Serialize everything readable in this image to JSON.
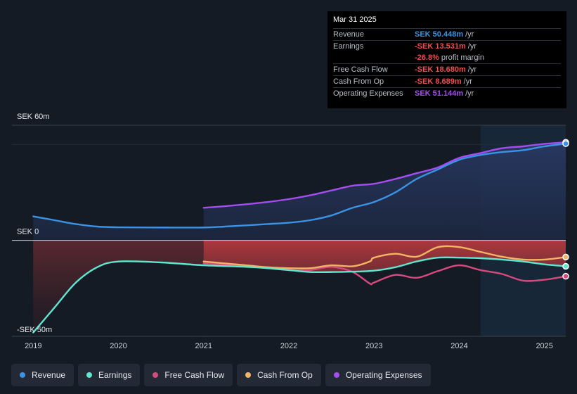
{
  "tooltip": {
    "date": "Mar 31 2025",
    "rows": [
      {
        "label": "Revenue",
        "value": "SEK 50.448m",
        "unit": "/yr"
      },
      {
        "label": "Earnings",
        "value": "-SEK 13.531m",
        "unit": "/yr"
      },
      {
        "label": "",
        "value": "-26.8%",
        "unit": "profit margin"
      },
      {
        "label": "Free Cash Flow",
        "value": "-SEK 18.680m",
        "unit": "/yr"
      },
      {
        "label": "Cash From Op",
        "value": "-SEK 8.689m",
        "unit": "/yr"
      },
      {
        "label": "Operating Expenses",
        "value": "SEK 51.144m",
        "unit": "/yr"
      }
    ]
  },
  "legend": [
    {
      "label": "Revenue",
      "color": "#3b93e4"
    },
    {
      "label": "Earnings",
      "color": "#5ee6d0"
    },
    {
      "label": "Free Cash Flow",
      "color": "#d64a7e"
    },
    {
      "label": "Cash From Op",
      "color": "#f2b566"
    },
    {
      "label": "Operating Expenses",
      "color": "#a44ef2"
    }
  ],
  "chart_data": {
    "type": "line",
    "title": "",
    "x_tick_labels": [
      "2019",
      "2020",
      "2021",
      "2022",
      "2023",
      "2024",
      "2025"
    ],
    "x_tick_values": [
      2019,
      2020,
      2021,
      2022,
      2023,
      2024,
      2025
    ],
    "y_tick_labels": [
      "SEK 60m",
      "SEK 0",
      "-SEK 50m"
    ],
    "y_tick_values": [
      60,
      0,
      -50
    ],
    "xlim": [
      2018.75,
      2025.25
    ],
    "ylim": [
      -50,
      60
    ],
    "unit": "SEK m",
    "highlight_from": 2024.25,
    "series": [
      {
        "name": "Revenue",
        "color": "#3b93e4",
        "x": [
          2019.0,
          2019.25,
          2019.5,
          2019.75,
          2020.0,
          2020.5,
          2021.0,
          2021.25,
          2021.5,
          2021.75,
          2022.0,
          2022.25,
          2022.5,
          2022.75,
          2023.0,
          2023.25,
          2023.5,
          2023.75,
          2024.0,
          2024.25,
          2024.5,
          2024.75,
          2025.0,
          2025.25
        ],
        "y": [
          12.5,
          10.5,
          8.5,
          7.2,
          6.8,
          6.7,
          6.7,
          7.2,
          7.8,
          8.5,
          9.2,
          10.5,
          13.0,
          17.0,
          20.0,
          25.0,
          32.0,
          37.0,
          42.0,
          44.5,
          46.0,
          47.0,
          49.0,
          50.4
        ]
      },
      {
        "name": "Earnings",
        "color": "#5ee6d0",
        "x": [
          2019.0,
          2019.25,
          2019.5,
          2019.75,
          2020.0,
          2020.5,
          2021.0,
          2021.5,
          2021.75,
          2022.0,
          2022.25,
          2022.5,
          2022.75,
          2023.0,
          2023.25,
          2023.5,
          2023.75,
          2024.0,
          2024.25,
          2024.5,
          2024.75,
          2025.0,
          2025.25
        ],
        "y": [
          -48.0,
          -35.0,
          -22.0,
          -14.0,
          -11.0,
          -11.5,
          -13.0,
          -13.8,
          -14.5,
          -15.5,
          -16.5,
          -16.5,
          -16.3,
          -15.8,
          -14.0,
          -11.0,
          -9.0,
          -9.0,
          -9.3,
          -10.0,
          -11.0,
          -12.5,
          -13.5
        ]
      },
      {
        "name": "Free Cash Flow",
        "color": "#d64a7e",
        "x": [
          2021.0,
          2021.5,
          2021.75,
          2022.0,
          2022.25,
          2022.5,
          2022.75,
          2022.95,
          2023.0,
          2023.25,
          2023.5,
          2023.75,
          2024.0,
          2024.25,
          2024.5,
          2024.75,
          2025.0,
          2025.25
        ],
        "y": [
          -12.0,
          -13.5,
          -14.5,
          -15.5,
          -15.5,
          -13.8,
          -16.5,
          -22.5,
          -22.0,
          -18.0,
          -19.5,
          -16.0,
          -13.0,
          -15.5,
          -17.5,
          -21.0,
          -20.5,
          -18.7
        ]
      },
      {
        "name": "Cash From Op",
        "color": "#f2b566",
        "x": [
          2021.0,
          2021.5,
          2021.75,
          2022.0,
          2022.25,
          2022.5,
          2022.75,
          2022.95,
          2023.0,
          2023.25,
          2023.5,
          2023.75,
          2024.0,
          2024.25,
          2024.5,
          2024.75,
          2025.0,
          2025.25
        ],
        "y": [
          -11.0,
          -13.0,
          -14.0,
          -14.5,
          -14.5,
          -13.0,
          -13.5,
          -11.0,
          -9.0,
          -7.0,
          -8.5,
          -3.5,
          -3.5,
          -6.0,
          -8.5,
          -10.0,
          -10.0,
          -8.7
        ]
      },
      {
        "name": "Operating Expenses",
        "color": "#a44ef2",
        "x": [
          2021.0,
          2021.25,
          2021.5,
          2021.75,
          2022.0,
          2022.25,
          2022.5,
          2022.75,
          2023.0,
          2023.25,
          2023.5,
          2023.75,
          2024.0,
          2024.25,
          2024.5,
          2024.75,
          2025.0,
          2025.25
        ],
        "y": [
          17.0,
          17.8,
          18.8,
          20.0,
          21.5,
          23.5,
          26.0,
          28.5,
          29.5,
          32.0,
          35.0,
          38.0,
          43.0,
          45.5,
          48.0,
          49.0,
          50.3,
          51.1
        ]
      }
    ]
  }
}
